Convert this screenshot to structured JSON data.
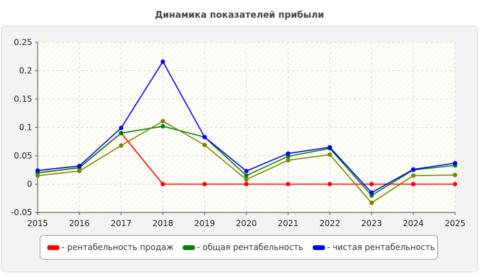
{
  "chart_data": {
    "type": "line",
    "title": "Динамика показателей прибыли",
    "xlabel": "",
    "ylabel": "",
    "x": [
      2015,
      2016,
      2017,
      2018,
      2019,
      2020,
      2021,
      2022,
      2023,
      2024,
      2025
    ],
    "x_tick_labels": [
      "2015",
      "2016",
      "2017",
      "2018",
      "2019",
      "2020",
      "2021",
      "2022",
      "2023",
      "2024",
      "2025"
    ],
    "ylim": [
      -0.05,
      0.25
    ],
    "y_ticks": [
      -0.05,
      0,
      0.05,
      0.1,
      0.15,
      0.2,
      0.25
    ],
    "y_tick_labels": [
      "-0.05",
      "0",
      "0.05",
      "0.1",
      "0.15",
      "0.2",
      "0.25"
    ],
    "grid": true,
    "legend_position": "bottom",
    "series": [
      {
        "name": "- рентабельность продаж",
        "color": "#ff0000",
        "values": [
          0.02,
          0.029,
          0.09,
          0.0,
          0.0,
          0.0,
          0.0,
          0.0,
          0.0,
          0.0,
          0.0
        ]
      },
      {
        "name": "- общая рентабельность",
        "color": "#008000",
        "values": [
          0.02,
          0.029,
          0.09,
          0.102,
          0.083,
          0.015,
          0.049,
          0.063,
          -0.02,
          0.025,
          0.033
        ]
      },
      {
        "name": "- чистая рентабельность",
        "color": "#0000ff",
        "values": [
          0.024,
          0.032,
          0.099,
          0.216,
          0.083,
          0.023,
          0.054,
          0.065,
          -0.015,
          0.026,
          0.037
        ]
      },
      {
        "name": "",
        "color": "#808000",
        "values": [
          0.015,
          0.023,
          0.068,
          0.111,
          0.069,
          0.008,
          0.042,
          0.052,
          -0.033,
          0.015,
          0.016
        ]
      }
    ]
  }
}
